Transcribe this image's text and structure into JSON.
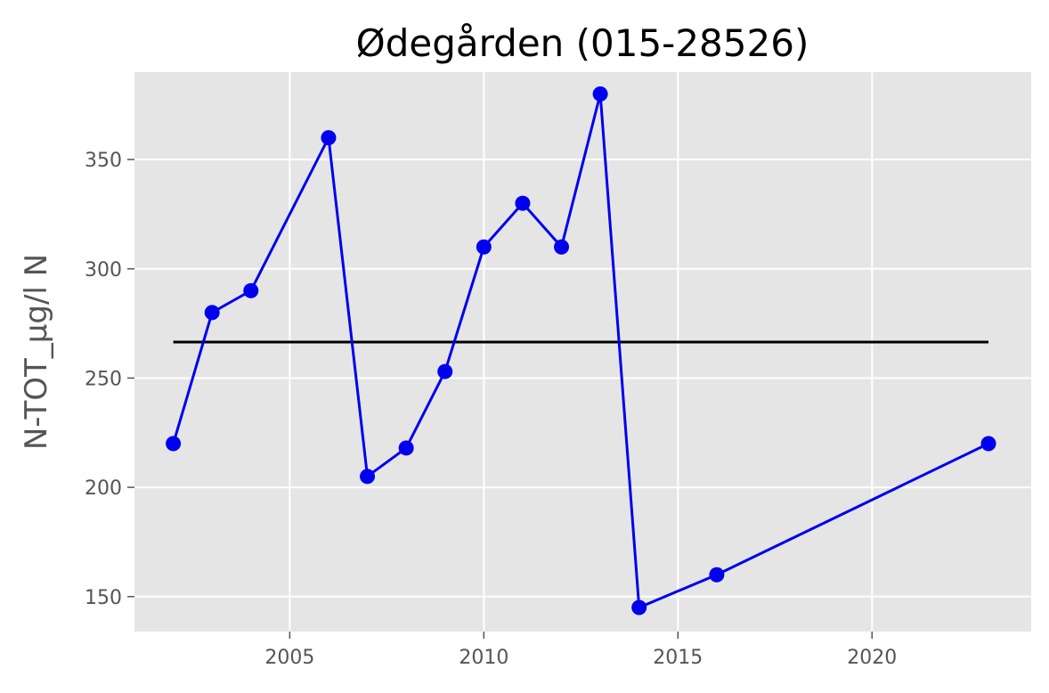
{
  "chart_data": {
    "type": "line",
    "title": "Ødegården (015-28526)",
    "xlabel": "",
    "ylabel": "N-TOT_µg/l N",
    "xlim": [
      2001.0,
      2024.1
    ],
    "ylim": [
      134,
      390
    ],
    "x_ticks": [
      2005,
      2010,
      2015,
      2020
    ],
    "y_ticks": [
      150,
      200,
      250,
      300,
      350
    ],
    "grid": true,
    "series": [
      {
        "x": [
          2002,
          2003,
          2004,
          2006,
          2007,
          2008,
          2009,
          2010,
          2011,
          2012,
          2013,
          2014,
          2016,
          2023
        ],
        "y": [
          220,
          280,
          290,
          360,
          205,
          218,
          253,
          310,
          330,
          310,
          380,
          145,
          160,
          220
        ],
        "color": "#0000ee",
        "marker": "circle"
      }
    ],
    "reference_line": {
      "x": [
        2002,
        2023
      ],
      "y": [
        266.5,
        266.5
      ],
      "color": "#000000"
    },
    "colors": {
      "plot_background": "#e5e5e5",
      "grid": "#ffffff",
      "tick_label": "#555555"
    }
  }
}
